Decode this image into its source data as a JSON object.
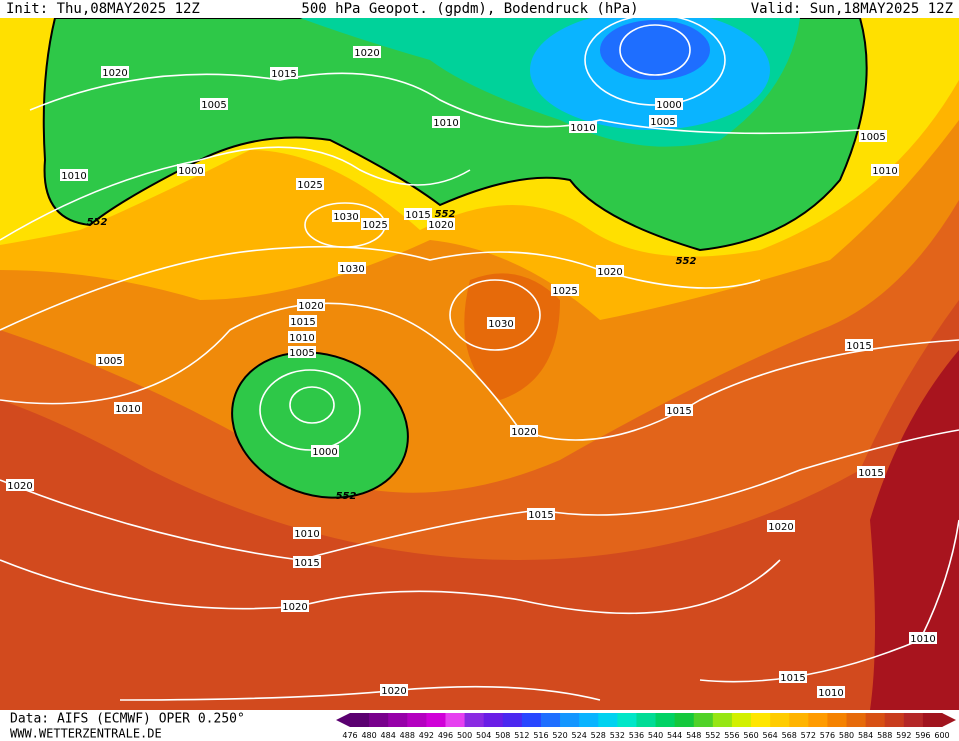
{
  "header": {
    "init": "Init: Thu,08MAY2025 12Z",
    "title": "500 hPa Geopot. (gpdm), Bodendruck (hPa)",
    "valid": "Valid: Sun,18MAY2025 12Z"
  },
  "footer": {
    "source": "Data: AIFS (ECMWF) OPER 0.250°",
    "website": "WWW.WETTERZENTRALE.DE"
  },
  "colorbar": {
    "labels": [
      476,
      480,
      484,
      488,
      492,
      496,
      500,
      504,
      508,
      512,
      516,
      520,
      524,
      528,
      532,
      536,
      540,
      544,
      548,
      552,
      556,
      560,
      564,
      568,
      572,
      576,
      580,
      584,
      588,
      592,
      596,
      600
    ],
    "colors": [
      "#5a0070",
      "#78008c",
      "#9600a8",
      "#b400c0",
      "#d000d8",
      "#e640f0",
      "#8a2be2",
      "#6a1ee6",
      "#4b28f0",
      "#2846ff",
      "#1e6eff",
      "#1496ff",
      "#0ab4ff",
      "#00d2f0",
      "#00e6c8",
      "#00dc96",
      "#00d264",
      "#14c83c",
      "#50d228",
      "#96e614",
      "#d2f000",
      "#ffe600",
      "#ffcc00",
      "#ffb400",
      "#ff9b00",
      "#f58200",
      "#e66a0a",
      "#d75014",
      "#c83c1e",
      "#b42828",
      "#a0141e"
    ]
  },
  "isobar_labels": [
    "1020",
    "1015",
    "1020",
    "1005",
    "1010",
    "1010",
    "1000",
    "1005",
    "1005",
    "1010",
    "1000",
    "1010",
    "1025",
    "1030",
    "1025",
    "1015",
    "1020",
    "1030",
    "1020",
    "1025",
    "1020",
    "1015",
    "1010",
    "1005",
    "1030",
    "1005",
    "1015",
    "1010",
    "1015",
    "1020",
    "1000",
    "1020",
    "1015",
    "1015",
    "1010",
    "1020",
    "1015",
    "1020",
    "1010",
    "1015",
    "1010",
    "1020"
  ],
  "contour_labels": [
    "552",
    "552",
    "552",
    "552"
  ]
}
